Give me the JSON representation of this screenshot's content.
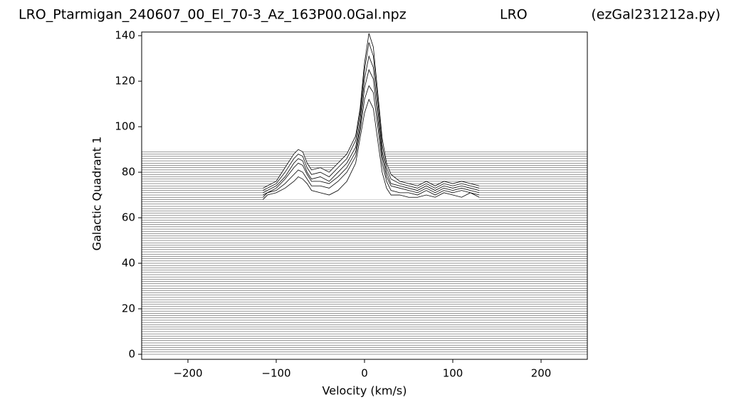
{
  "chart_data": {
    "type": "waterfall-line",
    "title": "LRO_Ptarmigan_240607_00_El_70-3_Az_163P00.0Gal.npz",
    "subtitle": "LRO",
    "annotation": "(ezGal231212a.py)",
    "xlabel": "Velocity (km/s)",
    "ylabel": "Galactic Quadrant 1",
    "xlim": [
      -252.4,
      252.4
    ],
    "xticks": [
      {
        "value": -200,
        "label": "−200"
      },
      {
        "value": -100,
        "label": "−100"
      },
      0,
      100,
      200
    ],
    "ylim": [
      -2.2,
      141.6
    ],
    "yticks": [
      0,
      20,
      40,
      60,
      80,
      100,
      120,
      140
    ],
    "color": "#000000",
    "baselines": [
      0,
      1,
      2,
      3,
      4,
      5,
      6,
      7,
      8,
      9,
      10,
      11,
      12,
      13,
      14,
      15,
      16,
      17,
      18,
      19,
      20,
      21,
      22,
      23,
      24,
      25,
      26,
      27,
      28,
      29,
      30,
      31,
      32,
      33,
      34,
      35,
      36,
      37,
      38,
      39,
      40,
      41,
      42,
      43,
      44,
      45,
      46,
      47,
      48,
      49,
      50,
      51,
      52,
      53,
      54,
      55,
      56,
      57,
      58,
      59,
      60,
      61,
      62,
      63,
      64,
      65,
      66,
      67,
      68,
      69,
      70,
      71,
      72,
      73,
      74,
      75,
      76,
      77,
      78,
      79,
      80,
      81,
      82,
      83,
      84,
      85,
      86,
      87,
      88,
      89
    ],
    "x": [
      -115,
      -110,
      -100,
      -90,
      -80,
      -75,
      -70,
      -65,
      -60,
      -50,
      -40,
      -30,
      -20,
      -10,
      -5,
      0,
      5,
      10,
      15,
      20,
      25,
      30,
      40,
      50,
      60,
      70,
      80,
      90,
      100,
      110,
      120,
      130
    ],
    "series": [
      {
        "values": [
          73,
          74,
          76,
          82,
          88,
          90,
          89,
          84,
          81,
          82,
          80,
          84,
          88,
          96,
          108,
          128,
          141,
          135,
          115,
          95,
          84,
          79,
          76,
          75,
          74,
          76,
          74,
          76,
          75,
          76,
          75,
          74
        ]
      },
      {
        "values": [
          72,
          73,
          75,
          80,
          86,
          88,
          87,
          82,
          79,
          80,
          78,
          82,
          86,
          94,
          106,
          125,
          137,
          131,
          112,
          92,
          82,
          77,
          75,
          74,
          73,
          75,
          73,
          75,
          74,
          75,
          74,
          73
        ]
      },
      {
        "values": [
          71,
          72,
          74,
          78,
          84,
          86,
          85,
          80,
          77,
          78,
          76,
          80,
          84,
          91,
          103,
          121,
          131,
          126,
          108,
          89,
          80,
          75,
          74,
          73,
          72,
          74,
          72,
          74,
          73,
          74,
          73,
          72
        ]
      },
      {
        "values": [
          70,
          71,
          73,
          77,
          82,
          84,
          83,
          79,
          76,
          76,
          75,
          78,
          82,
          89,
          100,
          117,
          125,
          121,
          104,
          87,
          78,
          74,
          73,
          72,
          71,
          73,
          71,
          73,
          72,
          73,
          72,
          71
        ]
      },
      {
        "values": [
          69,
          71,
          72,
          75,
          79,
          81,
          80,
          77,
          74,
          74,
          73,
          76,
          80,
          87,
          98,
          112,
          118,
          115,
          100,
          84,
          76,
          72,
          71,
          71,
          70,
          72,
          70,
          72,
          71,
          72,
          71,
          70
        ]
      },
      {
        "values": [
          68,
          70,
          71,
          73,
          76,
          78,
          77,
          75,
          72,
          71,
          70,
          72,
          76,
          84,
          95,
          106,
          112,
          108,
          94,
          80,
          73,
          70,
          70,
          69,
          69,
          70,
          69,
          71,
          70,
          69,
          71,
          69
        ]
      }
    ]
  }
}
